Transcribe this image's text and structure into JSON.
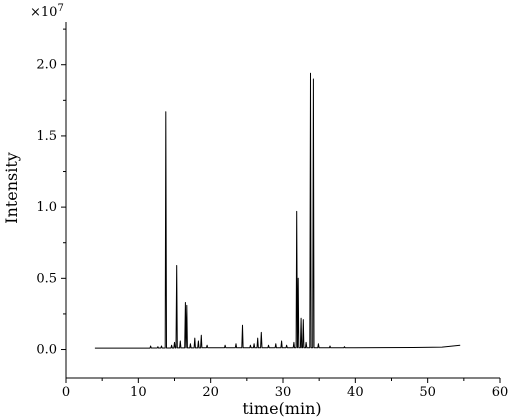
{
  "chart_data": {
    "type": "line",
    "xlabel": "time(min)",
    "ylabel": "Intensity",
    "y_multiplier_label": "×10",
    "y_multiplier_exponent": "7",
    "xlim": [
      0,
      60
    ],
    "ylim": [
      -0.2,
      2.3
    ],
    "x_ticks": [
      0,
      10,
      20,
      30,
      40,
      50,
      60
    ],
    "x_tick_labels": [
      "0",
      "10",
      "20",
      "30",
      "40",
      "50",
      "60"
    ],
    "y_ticks": [
      0.0,
      0.5,
      1.0,
      1.5,
      2.0
    ],
    "y_tick_labels": [
      "0.0",
      "0.5",
      "1.0",
      "1.5",
      "2.0"
    ],
    "grid": false,
    "line_color": "#000000",
    "baseline": {
      "start_time": 4.0,
      "end_time": 54.5,
      "points": [
        [
          4.0,
          0.01
        ],
        [
          10.0,
          0.01
        ],
        [
          20.0,
          0.012
        ],
        [
          30.0,
          0.012
        ],
        [
          40.0,
          0.012
        ],
        [
          48.0,
          0.014
        ],
        [
          52.0,
          0.017
        ],
        [
          54.5,
          0.03
        ]
      ]
    },
    "peaks": [
      {
        "time": 11.7,
        "value": 0.025
      },
      {
        "time": 12.7,
        "value": 0.02
      },
      {
        "time": 13.2,
        "value": 0.025
      },
      {
        "time": 13.8,
        "value": 1.67
      },
      {
        "time": 14.6,
        "value": 0.03
      },
      {
        "time": 15.0,
        "value": 0.05
      },
      {
        "time": 15.3,
        "value": 0.59
      },
      {
        "time": 15.8,
        "value": 0.06
      },
      {
        "time": 16.5,
        "value": 0.33
      },
      {
        "time": 16.7,
        "value": 0.31
      },
      {
        "time": 17.2,
        "value": 0.04
      },
      {
        "time": 17.8,
        "value": 0.08
      },
      {
        "time": 18.3,
        "value": 0.06
      },
      {
        "time": 18.7,
        "value": 0.1
      },
      {
        "time": 19.5,
        "value": 0.03
      },
      {
        "time": 22.0,
        "value": 0.03
      },
      {
        "time": 23.5,
        "value": 0.04
      },
      {
        "time": 24.4,
        "value": 0.17
      },
      {
        "time": 25.5,
        "value": 0.03
      },
      {
        "time": 26.0,
        "value": 0.04
      },
      {
        "time": 26.5,
        "value": 0.08
      },
      {
        "time": 27.0,
        "value": 0.12
      },
      {
        "time": 28.0,
        "value": 0.03
      },
      {
        "time": 29.0,
        "value": 0.04
      },
      {
        "time": 29.8,
        "value": 0.06
      },
      {
        "time": 30.5,
        "value": 0.03
      },
      {
        "time": 31.5,
        "value": 0.05
      },
      {
        "time": 31.9,
        "value": 0.97
      },
      {
        "time": 32.1,
        "value": 0.5
      },
      {
        "time": 32.5,
        "value": 0.22
      },
      {
        "time": 32.8,
        "value": 0.21
      },
      {
        "time": 33.2,
        "value": 0.05
      },
      {
        "time": 33.8,
        "value": 1.94
      },
      {
        "time": 34.2,
        "value": 1.9
      },
      {
        "time": 34.9,
        "value": 0.04
      },
      {
        "time": 36.5,
        "value": 0.025
      },
      {
        "time": 38.5,
        "value": 0.02
      }
    ]
  }
}
